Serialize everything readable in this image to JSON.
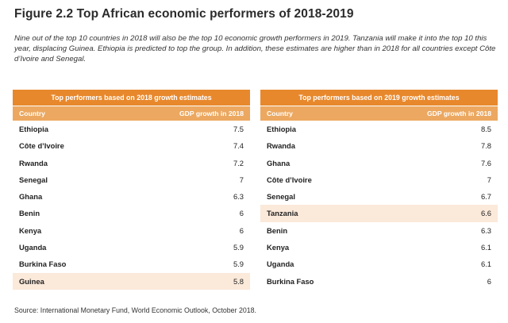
{
  "title": "Figure 2.2 Top African economic performers of 2018-2019",
  "intro": "Nine out of the top 10 countries in 2018 will also be the top 10 economic growth performers in 2019. Tanzania will make it into the top 10 this year, displacing Guinea. Ethiopia is predicted to top the group. In addition, these estimates are higher than in 2018 for all countries except Côte d’Ivoire and Senegal.",
  "tables": [
    {
      "heading": "Top performers based on 2018 growth estimates",
      "col_country": "Country",
      "col_gdp": "GDP growth in 2018",
      "highlight_color": "#fbe9da",
      "rows": [
        {
          "country": "Ethiopia",
          "value": "7.5"
        },
        {
          "country": "Côte d’Ivoire",
          "value": "7.4"
        },
        {
          "country": "Rwanda",
          "value": "7.2"
        },
        {
          "country": "Senegal",
          "value": "7"
        },
        {
          "country": "Ghana",
          "value": "6.3"
        },
        {
          "country": "Benin",
          "value": "6"
        },
        {
          "country": "Kenya",
          "value": "6"
        },
        {
          "country": "Uganda",
          "value": "5.9"
        },
        {
          "country": "Burkina Faso",
          "value": "5.9"
        },
        {
          "country": "Guinea",
          "value": "5.8",
          "highlight": true
        }
      ]
    },
    {
      "heading": "Top performers based on 2019 growth estimates",
      "col_country": "Country",
      "col_gdp": "GDP growth in 2018",
      "highlight_color": "#fbe9da",
      "rows": [
        {
          "country": "Ethiopia",
          "value": "8.5"
        },
        {
          "country": "Rwanda",
          "value": "7.8"
        },
        {
          "country": "Ghana",
          "value": "7.6"
        },
        {
          "country": "Côte d’Ivoire",
          "value": "7"
        },
        {
          "country": "Senegal",
          "value": "6.7"
        },
        {
          "country": "Tanzania",
          "value": "6.6",
          "highlight": true
        },
        {
          "country": "Benin",
          "value": "6.3"
        },
        {
          "country": "Kenya",
          "value": "6.1"
        },
        {
          "country": "Uganda",
          "value": "6.1"
        },
        {
          "country": "Burkina Faso",
          "value": "6"
        }
      ]
    }
  ],
  "colors": {
    "band": "#e8882c",
    "header": "#eca860"
  },
  "source": "Source: International Monetary Fund, World Economic Outlook, October 2018."
}
